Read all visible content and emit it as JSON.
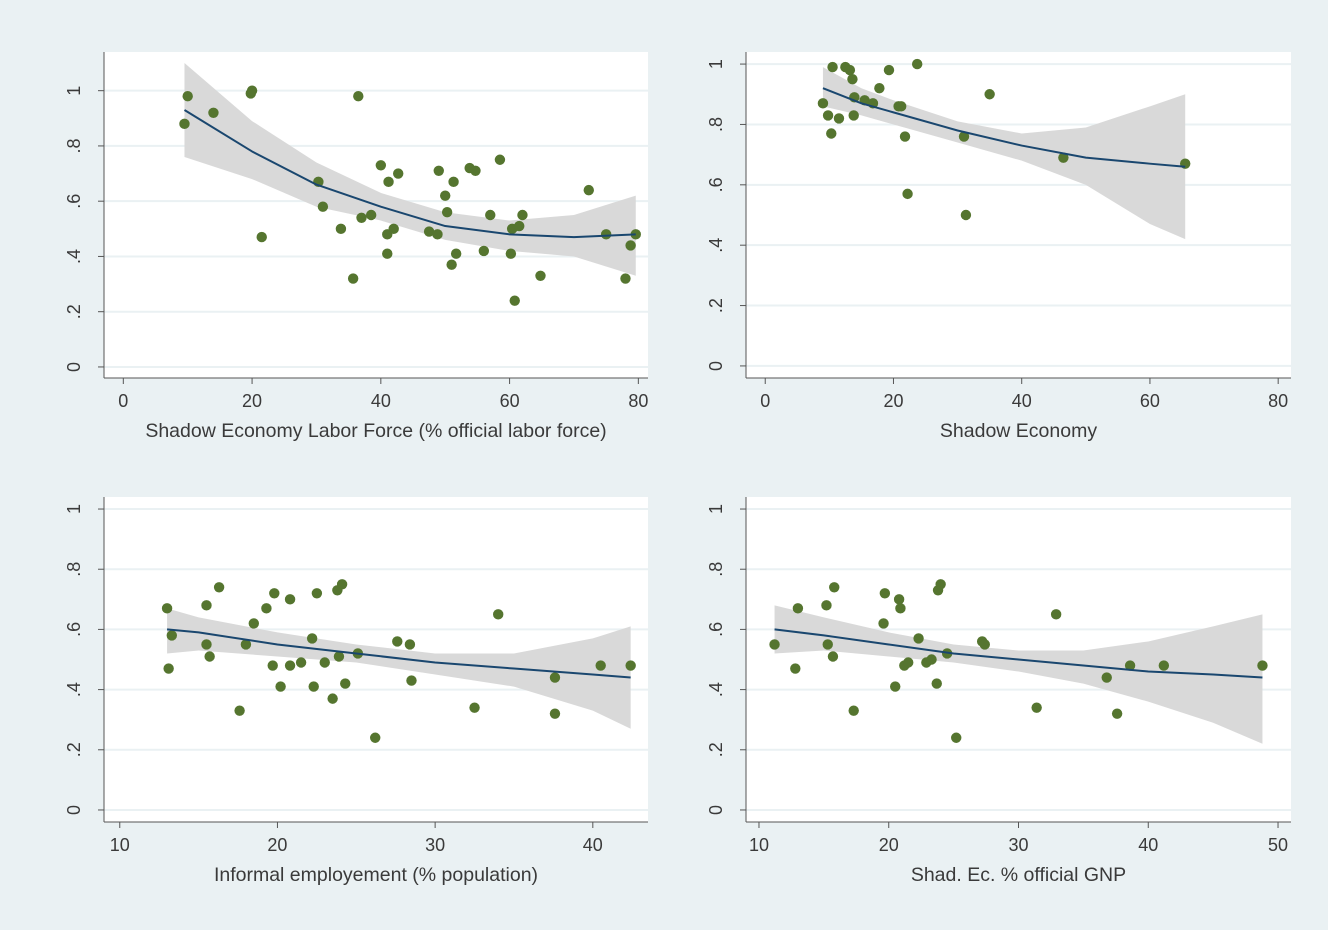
{
  "colors": {
    "background": "#eaf1f3",
    "plot_region": "#ffffff",
    "gridline": "#eaf1f3",
    "ci_band": "#d9d9d9",
    "fit_line": "#1a476f",
    "marker": "#55752f",
    "axis": "#555555",
    "text": "#3a3a3a"
  },
  "chart_data": [
    {
      "type": "scatter",
      "xlabel": "Shadow Economy Labor Force (% official labor force)",
      "ylabel": "",
      "xlim": [
        -3,
        81.5
      ],
      "ylim": [
        -0.04,
        1.14
      ],
      "xticks": [
        0,
        20,
        40,
        60,
        80
      ],
      "xticklabels": [
        "0",
        "20",
        "40",
        "60",
        "80"
      ],
      "yticks": [
        0,
        0.2,
        0.4,
        0.6,
        0.8,
        1
      ],
      "yticklabels": [
        "0",
        ".2",
        ".4",
        ".6",
        ".8",
        "1"
      ],
      "grid": true,
      "points": [
        [
          9.5,
          0.88
        ],
        [
          10,
          0.98
        ],
        [
          14,
          0.92
        ],
        [
          19.8,
          0.99
        ],
        [
          20,
          1.0
        ],
        [
          21.5,
          0.47
        ],
        [
          30.3,
          0.67
        ],
        [
          31,
          0.58
        ],
        [
          33.8,
          0.5
        ],
        [
          35.7,
          0.32
        ],
        [
          36.5,
          0.98
        ],
        [
          37,
          0.54
        ],
        [
          38.5,
          0.55
        ],
        [
          40,
          0.73
        ],
        [
          41,
          0.48
        ],
        [
          41,
          0.41
        ],
        [
          41.2,
          0.67
        ],
        [
          42,
          0.5
        ],
        [
          42.7,
          0.7
        ],
        [
          47.5,
          0.49
        ],
        [
          48.8,
          0.48
        ],
        [
          49,
          0.71
        ],
        [
          50,
          0.62
        ],
        [
          50.3,
          0.56
        ],
        [
          51,
          0.37
        ],
        [
          51.3,
          0.67
        ],
        [
          51.7,
          0.41
        ],
        [
          53.8,
          0.72
        ],
        [
          54.7,
          0.71
        ],
        [
          56,
          0.42
        ],
        [
          57,
          0.55
        ],
        [
          58.5,
          0.75
        ],
        [
          60.2,
          0.41
        ],
        [
          60.4,
          0.5
        ],
        [
          60.8,
          0.24
        ],
        [
          61.5,
          0.51
        ],
        [
          62,
          0.55
        ],
        [
          64.8,
          0.33
        ],
        [
          72.3,
          0.64
        ],
        [
          75,
          0.48
        ],
        [
          78,
          0.32
        ],
        [
          78.8,
          0.44
        ],
        [
          79.6,
          0.48
        ]
      ],
      "fit": [
        [
          9.5,
          0.93
        ],
        [
          20,
          0.78
        ],
        [
          30,
          0.66
        ],
        [
          40,
          0.58
        ],
        [
          50,
          0.51
        ],
        [
          60,
          0.48
        ],
        [
          70,
          0.47
        ],
        [
          79.6,
          0.48
        ]
      ],
      "ci_upper": [
        [
          9.5,
          1.1
        ],
        [
          20,
          0.89
        ],
        [
          30,
          0.74
        ],
        [
          40,
          0.63
        ],
        [
          50,
          0.56
        ],
        [
          60,
          0.53
        ],
        [
          70,
          0.55
        ],
        [
          79.6,
          0.62
        ]
      ],
      "ci_lower": [
        [
          9.5,
          0.76
        ],
        [
          20,
          0.68
        ],
        [
          30,
          0.58
        ],
        [
          40,
          0.53
        ],
        [
          50,
          0.46
        ],
        [
          60,
          0.42
        ],
        [
          70,
          0.4
        ],
        [
          79.6,
          0.33
        ]
      ]
    },
    {
      "type": "scatter",
      "xlabel": "Shadow Economy",
      "ylabel": "",
      "xlim": [
        -3,
        82
      ],
      "ylim": [
        -0.04,
        1.04
      ],
      "xticks": [
        0,
        20,
        40,
        60,
        80
      ],
      "xticklabels": [
        "0",
        "20",
        "40",
        "60",
        "80"
      ],
      "yticks": [
        0,
        0.2,
        0.4,
        0.6,
        0.8,
        1
      ],
      "yticklabels": [
        "0",
        ".2",
        ".4",
        ".6",
        ".8",
        "1"
      ],
      "grid": true,
      "points": [
        [
          9,
          0.87
        ],
        [
          9.8,
          0.83
        ],
        [
          10.3,
          0.77
        ],
        [
          10.5,
          0.99
        ],
        [
          11.5,
          0.82
        ],
        [
          12.5,
          0.99
        ],
        [
          13.2,
          0.98
        ],
        [
          13.6,
          0.95
        ],
        [
          13.8,
          0.83
        ],
        [
          13.9,
          0.89
        ],
        [
          15.5,
          0.88
        ],
        [
          16.8,
          0.87
        ],
        [
          17.8,
          0.92
        ],
        [
          19.3,
          0.98
        ],
        [
          20.8,
          0.86
        ],
        [
          21.2,
          0.86
        ],
        [
          21.8,
          0.76
        ],
        [
          22.2,
          0.57
        ],
        [
          23.7,
          1.0
        ],
        [
          31,
          0.76
        ],
        [
          31.3,
          0.5
        ],
        [
          35,
          0.9
        ],
        [
          46.5,
          0.69
        ],
        [
          65.5,
          0.67
        ]
      ],
      "fit": [
        [
          9,
          0.92
        ],
        [
          15,
          0.87
        ],
        [
          20,
          0.84
        ],
        [
          30,
          0.78
        ],
        [
          40,
          0.73
        ],
        [
          50,
          0.69
        ],
        [
          60,
          0.67
        ],
        [
          65.5,
          0.66
        ]
      ],
      "ci_upper": [
        [
          9,
          0.99
        ],
        [
          15,
          0.92
        ],
        [
          20,
          0.88
        ],
        [
          30,
          0.81
        ],
        [
          40,
          0.77
        ],
        [
          50,
          0.79
        ],
        [
          60,
          0.86
        ],
        [
          65.5,
          0.9
        ]
      ],
      "ci_lower": [
        [
          9,
          0.86
        ],
        [
          15,
          0.83
        ],
        [
          20,
          0.8
        ],
        [
          30,
          0.74
        ],
        [
          40,
          0.68
        ],
        [
          50,
          0.6
        ],
        [
          60,
          0.47
        ],
        [
          65.5,
          0.42
        ]
      ]
    },
    {
      "type": "scatter",
      "xlabel": "Informal employement (% population)",
      "ylabel": "",
      "xlim": [
        9,
        43.5
      ],
      "ylim": [
        -0.04,
        1.04
      ],
      "xticks": [
        10,
        20,
        30,
        40
      ],
      "xticklabels": [
        "10",
        "20",
        "30",
        "40"
      ],
      "yticks": [
        0,
        0.2,
        0.4,
        0.6,
        0.8,
        1
      ],
      "yticklabels": [
        "0",
        ".2",
        ".4",
        ".6",
        ".8",
        "1"
      ],
      "grid": true,
      "points": [
        [
          13,
          0.67
        ],
        [
          13.1,
          0.47
        ],
        [
          13.3,
          0.58
        ],
        [
          15.5,
          0.68
        ],
        [
          15.5,
          0.55
        ],
        [
          15.7,
          0.51
        ],
        [
          16.3,
          0.74
        ],
        [
          17.6,
          0.33
        ],
        [
          18,
          0.55
        ],
        [
          18.5,
          0.62
        ],
        [
          19.3,
          0.67
        ],
        [
          19.7,
          0.48
        ],
        [
          19.8,
          0.72
        ],
        [
          20.2,
          0.41
        ],
        [
          20.8,
          0.48
        ],
        [
          20.8,
          0.7
        ],
        [
          21.5,
          0.49
        ],
        [
          22.2,
          0.57
        ],
        [
          22.3,
          0.41
        ],
        [
          22.5,
          0.72
        ],
        [
          23,
          0.49
        ],
        [
          23.5,
          0.37
        ],
        [
          23.8,
          0.73
        ],
        [
          23.9,
          0.51
        ],
        [
          24.1,
          0.75
        ],
        [
          24.3,
          0.42
        ],
        [
          25.1,
          0.52
        ],
        [
          26.2,
          0.24
        ],
        [
          27.6,
          0.56
        ],
        [
          28.4,
          0.55
        ],
        [
          28.5,
          0.43
        ],
        [
          32.5,
          0.34
        ],
        [
          34,
          0.65
        ],
        [
          37.6,
          0.32
        ],
        [
          37.6,
          0.44
        ],
        [
          40.5,
          0.48
        ],
        [
          42.4,
          0.48
        ]
      ],
      "fit": [
        [
          13,
          0.6
        ],
        [
          15,
          0.59
        ],
        [
          20,
          0.55
        ],
        [
          25,
          0.52
        ],
        [
          30,
          0.49
        ],
        [
          35,
          0.47
        ],
        [
          40,
          0.45
        ],
        [
          42.4,
          0.44
        ]
      ],
      "ci_upper": [
        [
          13,
          0.67
        ],
        [
          15,
          0.64
        ],
        [
          20,
          0.59
        ],
        [
          25,
          0.55
        ],
        [
          30,
          0.52
        ],
        [
          35,
          0.52
        ],
        [
          40,
          0.57
        ],
        [
          42.4,
          0.61
        ]
      ],
      "ci_lower": [
        [
          13,
          0.52
        ],
        [
          15,
          0.53
        ],
        [
          20,
          0.51
        ],
        [
          25,
          0.49
        ],
        [
          30,
          0.45
        ],
        [
          35,
          0.41
        ],
        [
          40,
          0.33
        ],
        [
          42.4,
          0.27
        ]
      ]
    },
    {
      "type": "scatter",
      "xlabel": "Shad. Ec. % official GNP",
      "ylabel": "",
      "xlim": [
        9,
        51
      ],
      "ylim": [
        -0.04,
        1.04
      ],
      "xticks": [
        10,
        20,
        30,
        40,
        50
      ],
      "xticklabels": [
        "10",
        "20",
        "30",
        "40",
        "50"
      ],
      "yticks": [
        0,
        0.2,
        0.4,
        0.6,
        0.8,
        1
      ],
      "yticklabels": [
        "0",
        ".2",
        ".4",
        ".6",
        ".8",
        "1"
      ],
      "grid": true,
      "points": [
        [
          11.2,
          0.55
        ],
        [
          12.8,
          0.47
        ],
        [
          13,
          0.67
        ],
        [
          15.2,
          0.68
        ],
        [
          15.3,
          0.55
        ],
        [
          15.7,
          0.51
        ],
        [
          15.8,
          0.74
        ],
        [
          17.3,
          0.33
        ],
        [
          19.6,
          0.62
        ],
        [
          19.7,
          0.72
        ],
        [
          20.5,
          0.41
        ],
        [
          20.8,
          0.7
        ],
        [
          20.9,
          0.67
        ],
        [
          21.2,
          0.48
        ],
        [
          21.5,
          0.49
        ],
        [
          22.3,
          0.57
        ],
        [
          22.9,
          0.49
        ],
        [
          23.3,
          0.5
        ],
        [
          23.7,
          0.42
        ],
        [
          23.8,
          0.73
        ],
        [
          24,
          0.75
        ],
        [
          24.5,
          0.52
        ],
        [
          25.2,
          0.24
        ],
        [
          27.2,
          0.56
        ],
        [
          27.4,
          0.55
        ],
        [
          31.4,
          0.34
        ],
        [
          32.9,
          0.65
        ],
        [
          36.8,
          0.44
        ],
        [
          37.6,
          0.32
        ],
        [
          38.6,
          0.48
        ],
        [
          41.2,
          0.48
        ],
        [
          48.8,
          0.48
        ]
      ],
      "fit": [
        [
          11.2,
          0.6
        ],
        [
          15,
          0.58
        ],
        [
          20,
          0.55
        ],
        [
          25,
          0.52
        ],
        [
          30,
          0.5
        ],
        [
          35,
          0.48
        ],
        [
          40,
          0.46
        ],
        [
          45,
          0.45
        ],
        [
          48.8,
          0.44
        ]
      ],
      "ci_upper": [
        [
          11.2,
          0.68
        ],
        [
          15,
          0.64
        ],
        [
          20,
          0.59
        ],
        [
          25,
          0.55
        ],
        [
          30,
          0.53
        ],
        [
          35,
          0.53
        ],
        [
          40,
          0.56
        ],
        [
          45,
          0.61
        ],
        [
          48.8,
          0.65
        ]
      ],
      "ci_lower": [
        [
          11.2,
          0.52
        ],
        [
          15,
          0.53
        ],
        [
          20,
          0.51
        ],
        [
          25,
          0.49
        ],
        [
          30,
          0.46
        ],
        [
          35,
          0.42
        ],
        [
          40,
          0.36
        ],
        [
          45,
          0.29
        ],
        [
          48.8,
          0.22
        ]
      ]
    }
  ]
}
